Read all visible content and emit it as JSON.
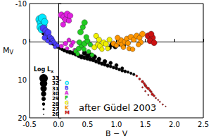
{
  "chart_data": {
    "type": "scatter",
    "xlabel": "B − V",
    "ylabel": "MV",
    "annotation": "after Güdel 2003",
    "xlim": [
      -0.5,
      2.5
    ],
    "xticks": [
      -0.5,
      {
        "value": 0,
        "label": "0.0"
      },
      0.5,
      {
        "value": 1,
        "label": "1.0"
      },
      1.5,
      {
        "value": 2,
        "label": "2.0"
      },
      2.5
    ],
    "ylim": [
      -10,
      20
    ],
    "yticks": [
      -10,
      0,
      10,
      20
    ],
    "y_inverted": true,
    "grid": false,
    "size_legend": {
      "title": "Log Lx",
      "values": [
        33,
        32,
        31,
        30,
        29,
        28,
        27,
        26
      ]
    },
    "series": [
      {
        "color": "#000000",
        "marker": "circle",
        "points": [
          [
            -0.28,
            -3.0,
            29.5
          ],
          [
            -0.25,
            -2.2,
            29.5
          ],
          [
            -0.22,
            -1.6,
            29
          ],
          [
            -0.2,
            -1.0,
            29
          ],
          [
            -0.17,
            -0.6,
            29
          ],
          [
            -0.14,
            0.0,
            28.5
          ],
          [
            -0.1,
            0.5,
            28.5
          ],
          [
            -0.06,
            1.0,
            28.5
          ],
          [
            -0.02,
            1.4,
            28
          ],
          [
            0.02,
            1.7,
            28
          ],
          [
            0.06,
            2.0,
            28
          ],
          [
            0.1,
            2.3,
            28.5
          ],
          [
            0.15,
            2.6,
            28.5
          ],
          [
            0.2,
            2.8,
            29
          ],
          [
            0.25,
            3.0,
            29
          ],
          [
            0.3,
            3.3,
            29
          ],
          [
            0.35,
            3.7,
            29
          ],
          [
            0.4,
            4.0,
            29.5
          ],
          [
            0.45,
            4.2,
            29
          ],
          [
            0.5,
            4.4,
            29
          ],
          [
            0.55,
            4.6,
            29
          ],
          [
            0.6,
            4.8,
            29
          ],
          [
            0.65,
            5.2,
            28.5
          ],
          [
            0.7,
            5.5,
            28.5
          ],
          [
            0.75,
            5.8,
            28.5
          ],
          [
            0.8,
            6.0,
            28.5
          ],
          [
            0.85,
            6.3,
            28.5
          ],
          [
            0.9,
            6.5,
            28
          ],
          [
            0.95,
            6.8,
            28
          ],
          [
            1.0,
            7.0,
            28
          ],
          [
            1.05,
            7.3,
            28
          ],
          [
            1.1,
            7.6,
            28
          ],
          [
            1.15,
            7.8,
            28
          ],
          [
            1.2,
            8.0,
            27.5
          ],
          [
            1.25,
            8.3,
            27.5
          ],
          [
            1.3,
            8.6,
            27.5
          ],
          [
            0.55,
            3.5,
            29.5
          ],
          [
            0.62,
            4.0,
            29.5
          ],
          [
            0.7,
            4.6,
            29
          ],
          [
            0.8,
            5.2,
            29
          ],
          [
            0.9,
            5.6,
            28.5
          ],
          [
            1.0,
            6.2,
            28.5
          ],
          [
            1.1,
            7.0,
            28
          ],
          [
            0.45,
            3.0,
            29.5
          ],
          [
            0.5,
            3.8,
            29.5
          ],
          [
            0.92,
            0.8,
            29.5
          ],
          [
            0.98,
            1.3,
            29.5
          ],
          [
            1.05,
            0.6,
            29.5
          ],
          [
            0.88,
            1.6,
            29
          ],
          [
            1.12,
            1.0,
            29.5
          ]
        ]
      },
      {
        "name": "O",
        "color": "#00e8ff",
        "marker": "circle",
        "points": [
          [
            -0.32,
            -5.8,
            33
          ],
          [
            -0.3,
            -4.9,
            32.5
          ],
          [
            -0.28,
            -6.2,
            32.8
          ],
          [
            -0.26,
            -4.3,
            32
          ],
          [
            -0.31,
            -3.8,
            32.2
          ],
          [
            -0.24,
            -5.2,
            31.5
          ],
          [
            -0.29,
            -3.2,
            31.8
          ]
        ]
      },
      {
        "name": "B",
        "color": "#4a3cff",
        "marker": "circle",
        "points": [
          [
            -0.26,
            -3.5,
            31.5
          ],
          [
            -0.22,
            -2.8,
            31
          ],
          [
            -0.2,
            -1.9,
            30.5
          ],
          [
            -0.18,
            -2.4,
            31
          ],
          [
            -0.15,
            -1.2,
            30
          ],
          [
            -0.12,
            -0.8,
            30
          ],
          [
            -0.1,
            -0.3,
            29.5
          ],
          [
            -0.08,
            0.2,
            29.5
          ],
          [
            -0.05,
            0.6,
            29
          ],
          [
            -0.02,
            1.0,
            29
          ],
          [
            -0.24,
            -1.0,
            30
          ],
          [
            -0.19,
            -0.2,
            29
          ],
          [
            -0.14,
            0.4,
            28.5
          ],
          [
            -0.06,
            1.4,
            28.5
          ]
        ]
      },
      {
        "name": "A",
        "color": "#e020e0",
        "marker": "circle",
        "points": [
          [
            0.05,
            -7.0,
            31
          ],
          [
            0.1,
            -6.5,
            31.5
          ],
          [
            0.12,
            -5.8,
            30.5
          ],
          [
            0.15,
            -7.2,
            31
          ],
          [
            0.18,
            -5.5,
            30
          ],
          [
            0.2,
            -6.8,
            30.5
          ],
          [
            0.08,
            -4.5,
            30
          ],
          [
            0.12,
            0.5,
            29.5
          ],
          [
            0.22,
            1.0,
            29
          ],
          [
            0.25,
            0.2,
            29
          ],
          [
            0.15,
            1.8,
            28.5
          ],
          [
            0.28,
            2.2,
            28.5
          ],
          [
            0.05,
            1.2,
            29
          ],
          [
            0.18,
            -0.4,
            29
          ]
        ]
      },
      {
        "name": "F",
        "color": "#22cc22",
        "marker": "circle",
        "points": [
          [
            0.3,
            2.5,
            29.5
          ],
          [
            0.35,
            1.8,
            30
          ],
          [
            0.4,
            1.0,
            30
          ],
          [
            0.45,
            0.5,
            30.5
          ],
          [
            0.5,
            -0.2,
            30
          ],
          [
            0.55,
            0.8,
            29.5
          ],
          [
            0.38,
            -2.5,
            30.5
          ],
          [
            0.42,
            -3.8,
            30
          ],
          [
            0.48,
            -1.2,
            30
          ],
          [
            0.33,
            3.2,
            29
          ],
          [
            0.52,
            2.6,
            29
          ],
          [
            0.58,
            3.5,
            29
          ],
          [
            0.45,
            -5.0,
            30.5
          ],
          [
            0.36,
            0.2,
            30
          ],
          [
            0.44,
            2.0,
            29.5
          ]
        ]
      },
      {
        "name": "G",
        "color": "#f0f000",
        "marker": "circle",
        "points": [
          [
            0.62,
            1.5,
            30
          ],
          [
            0.68,
            0.8,
            30
          ],
          [
            0.72,
            1.2,
            30.5
          ],
          [
            0.78,
            0.3,
            30.5
          ],
          [
            0.82,
            0.6,
            30
          ],
          [
            0.88,
            -0.5,
            30
          ],
          [
            0.65,
            -1.5,
            30
          ],
          [
            0.75,
            2.0,
            29.5
          ],
          [
            0.85,
            1.8,
            29.5
          ],
          [
            0.7,
            -0.5,
            30
          ]
        ]
      },
      {
        "name": "K",
        "color": "#ff9500",
        "marker": "circle",
        "points": [
          [
            0.95,
            0.5,
            30
          ],
          [
            1.0,
            1.0,
            29.5
          ],
          [
            1.05,
            0.2,
            30
          ],
          [
            1.08,
            -0.3,
            30.5
          ],
          [
            1.1,
            0.8,
            30
          ],
          [
            1.12,
            1.5,
            29.5
          ],
          [
            1.15,
            0.0,
            30.5
          ],
          [
            1.18,
            -0.8,
            30
          ],
          [
            1.2,
            0.4,
            30
          ],
          [
            1.25,
            -1.2,
            30.5
          ],
          [
            1.3,
            -0.5,
            30
          ],
          [
            1.35,
            -1.5,
            30.5
          ],
          [
            1.4,
            -1.0,
            30
          ],
          [
            1.42,
            0.2,
            30
          ],
          [
            1.45,
            -2.0,
            30.5
          ],
          [
            1.38,
            0.8,
            29.5
          ],
          [
            1.22,
            1.8,
            29.5
          ],
          [
            1.28,
            2.0,
            29.5
          ],
          [
            1.02,
            -1.0,
            30
          ]
        ]
      },
      {
        "name": "M",
        "color": "#cc1111",
        "marker": "circle",
        "points": [
          [
            1.55,
            -1.5,
            31
          ],
          [
            1.62,
            -1.0,
            31
          ],
          [
            1.58,
            -0.2,
            30.5
          ],
          [
            1.65,
            0.3,
            30.5
          ],
          [
            1.6,
            -2.0,
            30.5
          ],
          [
            1.35,
            9.0,
            27
          ],
          [
            1.4,
            9.8,
            27
          ],
          [
            1.45,
            10.5,
            27.5
          ],
          [
            1.48,
            11.0,
            27
          ],
          [
            1.5,
            11.5,
            27.5
          ],
          [
            1.52,
            12.0,
            27
          ],
          [
            1.55,
            12.3,
            27.5
          ],
          [
            1.58,
            12.8,
            27
          ],
          [
            1.6,
            13.2,
            27
          ],
          [
            1.62,
            13.8,
            27.5
          ],
          [
            1.65,
            14.2,
            27
          ],
          [
            1.68,
            14.8,
            26.5
          ],
          [
            1.72,
            15.3,
            26.5
          ],
          [
            1.75,
            15.8,
            26.5
          ],
          [
            1.8,
            16.5,
            26.5
          ],
          [
            1.85,
            17.0,
            26
          ],
          [
            1.55,
            14.0,
            26.5
          ],
          [
            1.5,
            13.0,
            26.5
          ],
          [
            1.45,
            12.0,
            26.5
          ]
        ]
      }
    ]
  }
}
